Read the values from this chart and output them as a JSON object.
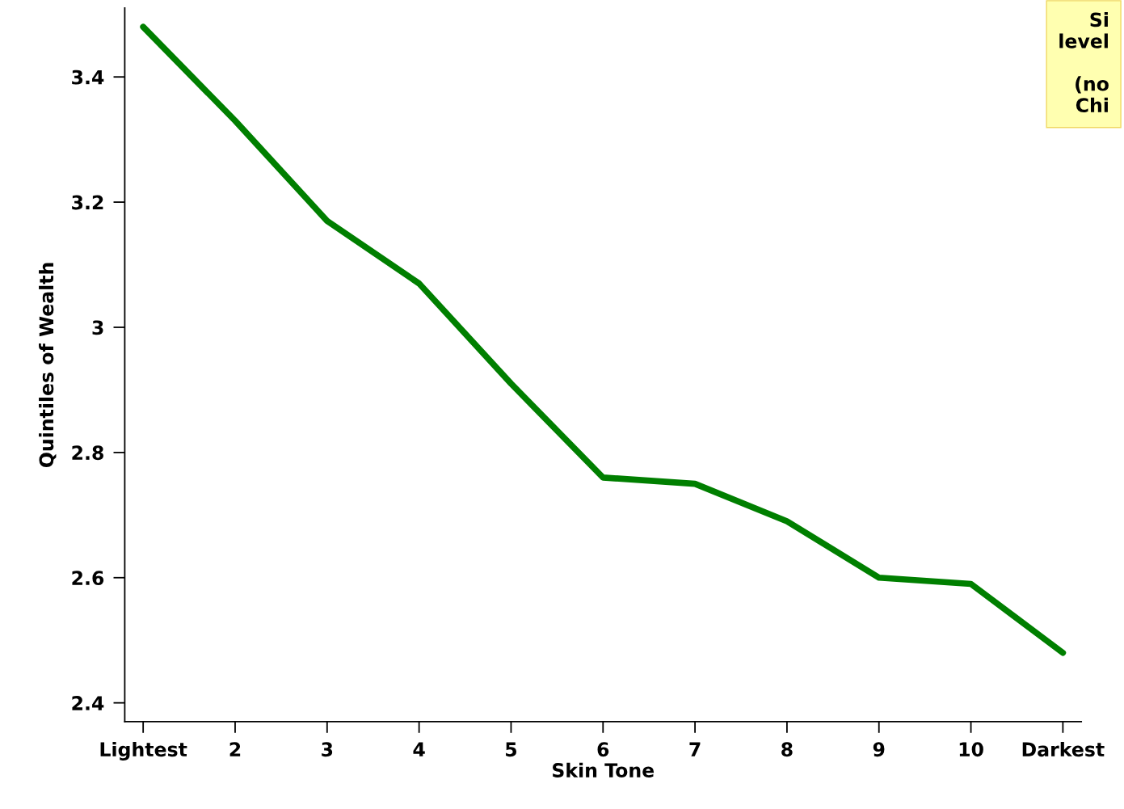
{
  "chart_data": {
    "type": "line",
    "xlabel": "Skin Tone",
    "ylabel": "Quintiles of Wealth",
    "categories": [
      "Lightest",
      "2",
      "3",
      "4",
      "5",
      "6",
      "7",
      "8",
      "9",
      "10",
      "Darkest"
    ],
    "series": [
      {
        "color": "#007f00",
        "values": [
          3.48,
          3.33,
          3.17,
          3.07,
          2.91,
          2.76,
          2.75,
          2.69,
          2.6,
          2.59,
          2.48
        ]
      }
    ],
    "ylim": [
      2.37,
      3.51
    ],
    "yticks": [
      2.4,
      2.6,
      2.8,
      3,
      3.2,
      3.4
    ],
    "grid": false,
    "legend": false,
    "marker": "none",
    "line_style": "solid",
    "annotations": [
      "Si\nlevel\n\n(no\nChi"
    ]
  }
}
